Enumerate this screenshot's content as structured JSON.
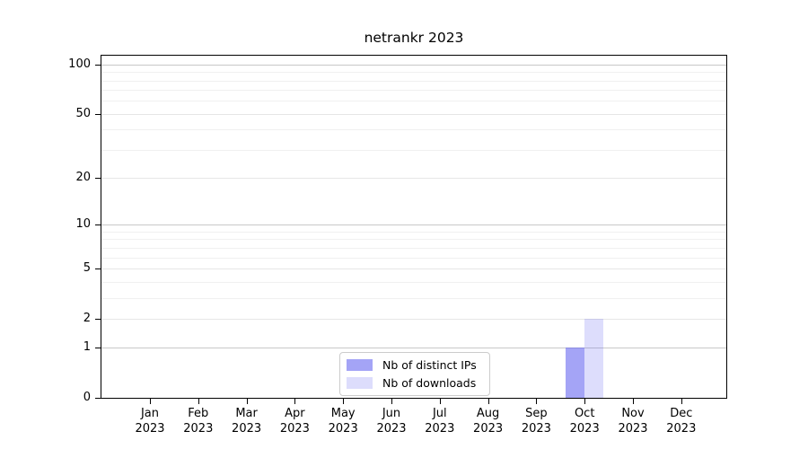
{
  "figure": {
    "title": "netrankr 2023"
  },
  "chart_data": {
    "type": "bar",
    "title": "netrankr 2023",
    "scale": "symlog-log1p",
    "categories": [
      "Jan",
      "Feb",
      "Mar",
      "Apr",
      "May",
      "Jun",
      "Jul",
      "Aug",
      "Sep",
      "Oct",
      "Nov",
      "Dec"
    ],
    "category_year": "2023",
    "series": [
      {
        "name": "Nb of distinct IPs",
        "color": "rgba(98,98,240,0.58)",
        "values": [
          0,
          0,
          0,
          0,
          0,
          0,
          0,
          0,
          0,
          1,
          0,
          0
        ]
      },
      {
        "name": "Nb of downloads",
        "color": "rgba(98,98,240,0.22)",
        "values": [
          0,
          0,
          0,
          0,
          0,
          0,
          0,
          0,
          0,
          2,
          0,
          0
        ]
      }
    ],
    "y_ticks": [
      0,
      1,
      2,
      5,
      10,
      20,
      50,
      100
    ],
    "ylim": [
      0,
      113
    ],
    "xlabel": "",
    "ylabel": "",
    "grid": {
      "major_values": [
        1,
        10,
        100
      ],
      "labeled_values": [
        2,
        5,
        20,
        50
      ],
      "minor_values": [
        3,
        4,
        6,
        7,
        8,
        9,
        30,
        40,
        60,
        70,
        80,
        90
      ],
      "major_color": "#c8c8c8",
      "labeled_color": "#e6e6e6",
      "minor_color": "#f0f0f0"
    },
    "legend": {
      "position": "bottom-center-inside",
      "entries": [
        "Nb of distinct IPs",
        "Nb of downloads"
      ]
    }
  }
}
